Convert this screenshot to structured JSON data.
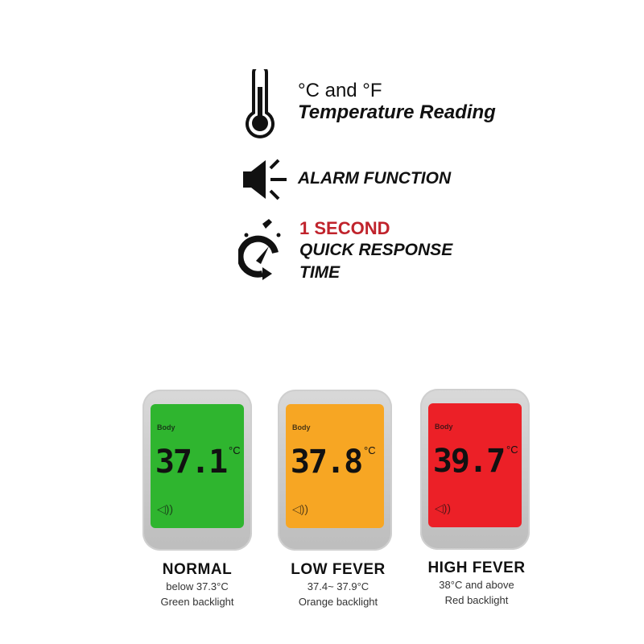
{
  "features": [
    {
      "icon": "thermometer-icon",
      "line1": "°C and °F",
      "line2": "Temperature Reading"
    },
    {
      "icon": "speaker-alarm-icon",
      "line1": "ALARM FUNCTION"
    },
    {
      "icon": "stopwatch-icon",
      "highlight": "1 SECOND",
      "line2": "QUICK RESPONSE",
      "line3": "TIME"
    }
  ],
  "devices": [
    {
      "mode_label": "Body",
      "reading": "37.1",
      "unit": "°C",
      "color": "#2fb52f",
      "title": "NORMAL",
      "range": "below 37.3°C",
      "backlight": "Green backlight"
    },
    {
      "mode_label": "Body",
      "reading": "37.8",
      "unit": "°C",
      "color": "#f7a623",
      "title": "LOW FEVER",
      "range": "37.4~ 37.9°C",
      "backlight": "Orange backlight"
    },
    {
      "mode_label": "Body",
      "reading": "39.7",
      "unit": "°C",
      "color": "#ec2027",
      "title": "HIGH FEVER",
      "range": "38°C and above",
      "backlight": "Red backlight"
    }
  ],
  "colors": {
    "highlight": "#c0232c"
  }
}
